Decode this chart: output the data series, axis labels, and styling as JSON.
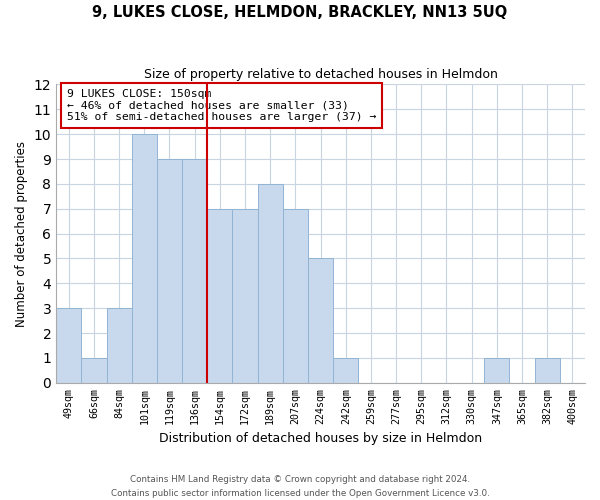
{
  "title": "9, LUKES CLOSE, HELMDON, BRACKLEY, NN13 5UQ",
  "subtitle": "Size of property relative to detached houses in Helmdon",
  "xlabel": "Distribution of detached houses by size in Helmdon",
  "ylabel": "Number of detached properties",
  "bin_labels": [
    "49sqm",
    "66sqm",
    "84sqm",
    "101sqm",
    "119sqm",
    "136sqm",
    "154sqm",
    "172sqm",
    "189sqm",
    "207sqm",
    "224sqm",
    "242sqm",
    "259sqm",
    "277sqm",
    "295sqm",
    "312sqm",
    "330sqm",
    "347sqm",
    "365sqm",
    "382sqm",
    "400sqm"
  ],
  "bar_heights": [
    3,
    1,
    3,
    10,
    9,
    9,
    7,
    7,
    8,
    7,
    5,
    1,
    0,
    0,
    0,
    0,
    0,
    1,
    0,
    1,
    0
  ],
  "bar_color": "#c8d9ee",
  "bar_edge_color": "#92b4d4",
  "vline_color": "#cc0000",
  "annotation_line1": "9 LUKES CLOSE: 150sqm",
  "annotation_line2": "← 46% of detached houses are smaller (33)",
  "annotation_line3": "51% of semi-detached houses are larger (37) →",
  "annotation_box_edge": "#cc0000",
  "ylim": [
    0,
    12
  ],
  "yticks": [
    0,
    1,
    2,
    3,
    4,
    5,
    6,
    7,
    8,
    9,
    10,
    11,
    12
  ],
  "footer_line1": "Contains HM Land Registry data © Crown copyright and database right 2024.",
  "footer_line2": "Contains public sector information licensed under the Open Government Licence v3.0.",
  "background_color": "#ffffff",
  "grid_color": "#c8d4e0"
}
